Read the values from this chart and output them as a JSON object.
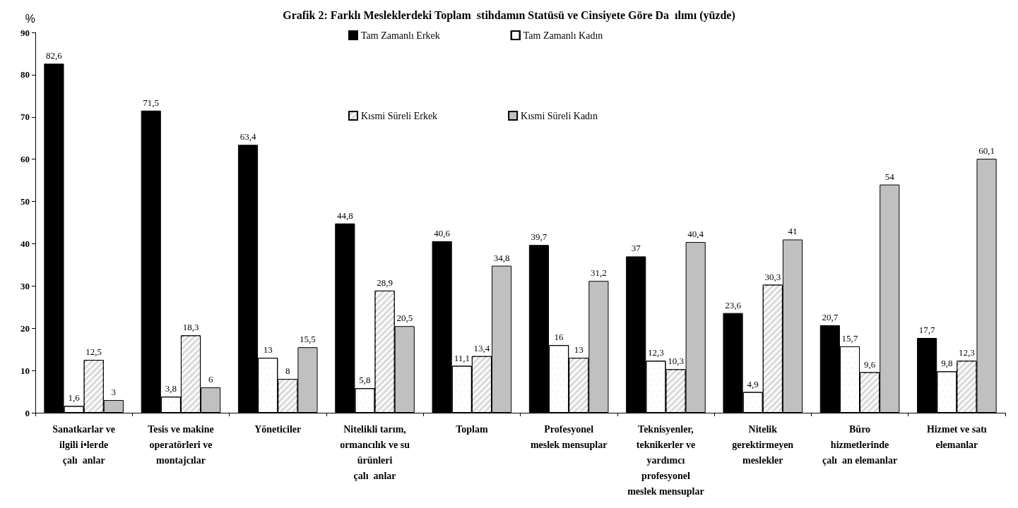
{
  "chart_data": {
    "type": "bar",
    "title": "Grafik 2: Farklı Mesleklerdeki Toplam  stihdamın Statüsü ve Cinsiyete Göre Da  ılımı (yüzde)",
    "ylabel": "%",
    "categories": [
      "Sanatkarlar ve\nilgili i•lerde\nçalı  anlar",
      "Tesis ve makine\noperatörleri ve\nmontajcılar",
      "Yöneticiler",
      "Nitelikli tarım,\normancılık ve su\nürünleri\nçalı  anlar",
      "Toplam",
      "Profesyonel\nmeslek mensuplar",
      "Teknisyenler,\nteknikerler ve\nyardımcı\nprofesyonel\nmeslek mensuplar",
      "Nitelik\ngerektirmeyen\nmeslekler",
      "Büro\nhizmetlerinde\nçalı  an elemanlar",
      "Hizmet ve satı\nelemanlar"
    ],
    "series": [
      {
        "name": "Tam Zamanlı Erkek",
        "color": "#000000",
        "values": [
          82.6,
          71.5,
          63.4,
          44.8,
          40.6,
          39.7,
          37,
          23.6,
          20.7,
          17.7
        ],
        "value_labels": [
          "82,6",
          "71,5",
          "63,4",
          "44,8",
          "40,6",
          "39,7",
          "37",
          "23,6",
          "20,7",
          "17,7"
        ]
      },
      {
        "name": "Tam Zamanlı Kadın",
        "color": "#ffffff",
        "values": [
          1.6,
          3.8,
          13,
          5.8,
          11.1,
          16,
          12.3,
          4.9,
          15.7,
          9.8
        ],
        "value_labels": [
          "1,6",
          "3,8",
          "13",
          "5,8",
          "11,1",
          "16",
          "12,3",
          "4,9",
          "15,7",
          "9,8"
        ]
      },
      {
        "name": "Kısmi Süreli Erkek",
        "color": "#d9d9d9",
        "values": [
          12.5,
          18.3,
          8,
          28.9,
          13.4,
          13,
          10.3,
          30.3,
          9.6,
          12.3
        ],
        "value_labels": [
          "12,5",
          "18,3",
          "8",
          "28,9",
          "13,4",
          "13",
          "10,3",
          "30,3",
          "9,6",
          "12,3"
        ]
      },
      {
        "name": "Kısmi Süreli Kadın",
        "color": "#c0c0c0",
        "values": [
          3,
          6,
          15.5,
          20.5,
          34.8,
          31.2,
          40.4,
          41,
          54,
          60.1
        ],
        "value_labels": [
          "3",
          "6",
          "15,5",
          "20,5",
          "34,8",
          "31,2",
          "40,4",
          "41",
          "54",
          "60,1"
        ]
      }
    ],
    "ylim": [
      0,
      90
    ],
    "yticks": [
      0,
      10,
      20,
      30,
      40,
      50,
      60,
      70,
      80,
      90
    ],
    "grid": false,
    "legend": "top"
  }
}
